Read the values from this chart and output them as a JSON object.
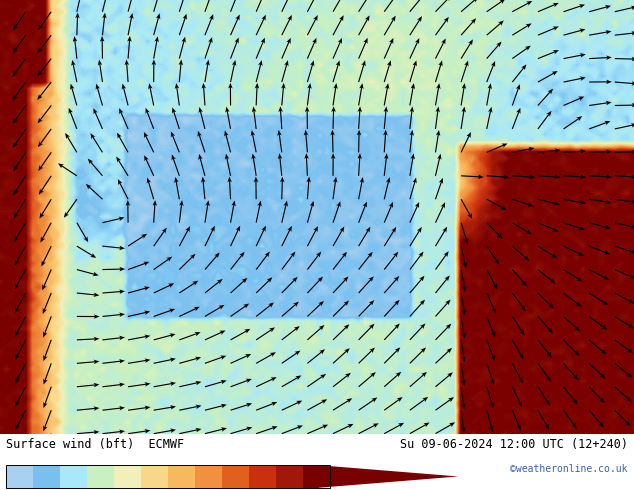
{
  "title_left": "Surface wind (bft)  ECMWF",
  "title_right": "Su 09-06-2024 12:00 UTC (12+240)",
  "credit": "©weatheronline.co.uk",
  "colorbar_levels": [
    1,
    2,
    3,
    4,
    5,
    6,
    7,
    8,
    9,
    10,
    11,
    12
  ],
  "colorbar_colors": [
    "#a8d0f0",
    "#78c0f0",
    "#a8e8f8",
    "#c8f0c0",
    "#f0f0b8",
    "#f8d888",
    "#f8b860",
    "#f09040",
    "#e06020",
    "#c83010",
    "#a01808",
    "#780000"
  ],
  "fig_width": 6.34,
  "fig_height": 4.9,
  "dpi": 100
}
